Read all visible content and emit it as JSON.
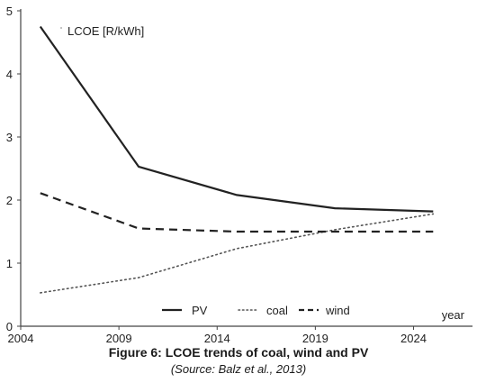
{
  "chart_data": {
    "type": "line",
    "ylabel": "LCOE [R/kWh]",
    "xlabel": "year",
    "xlim": [
      2004,
      2027
    ],
    "ylim": [
      0,
      5
    ],
    "x_ticks": [
      2004,
      2009,
      2014,
      2019,
      2024
    ],
    "y_ticks": [
      0,
      1,
      2,
      3,
      4,
      5
    ],
    "grid": false,
    "legend_position": "bottom",
    "series": [
      {
        "name": "PV",
        "style": "solid",
        "color": "#222222",
        "points": [
          {
            "x": 2005,
            "y": 4.75
          },
          {
            "x": 2010,
            "y": 2.53
          },
          {
            "x": 2015,
            "y": 2.08
          },
          {
            "x": 2020,
            "y": 1.87
          },
          {
            "x": 2025,
            "y": 1.82
          }
        ]
      },
      {
        "name": "coal",
        "style": "dotted",
        "color": "#555555",
        "points": [
          {
            "x": 2005,
            "y": 0.53
          },
          {
            "x": 2010,
            "y": 0.77
          },
          {
            "x": 2015,
            "y": 1.23
          },
          {
            "x": 2020,
            "y": 1.53
          },
          {
            "x": 2025,
            "y": 1.78
          }
        ]
      },
      {
        "name": "wind",
        "style": "dashed",
        "color": "#222222",
        "points": [
          {
            "x": 2005,
            "y": 2.11
          },
          {
            "x": 2010,
            "y": 1.55
          },
          {
            "x": 2015,
            "y": 1.5
          },
          {
            "x": 2020,
            "y": 1.5
          },
          {
            "x": 2025,
            "y": 1.5
          }
        ]
      }
    ]
  },
  "caption": {
    "title": "Figure 6: LCOE trends of coal, wind and PV",
    "source": "(Source: Balz et al., 2013)"
  }
}
